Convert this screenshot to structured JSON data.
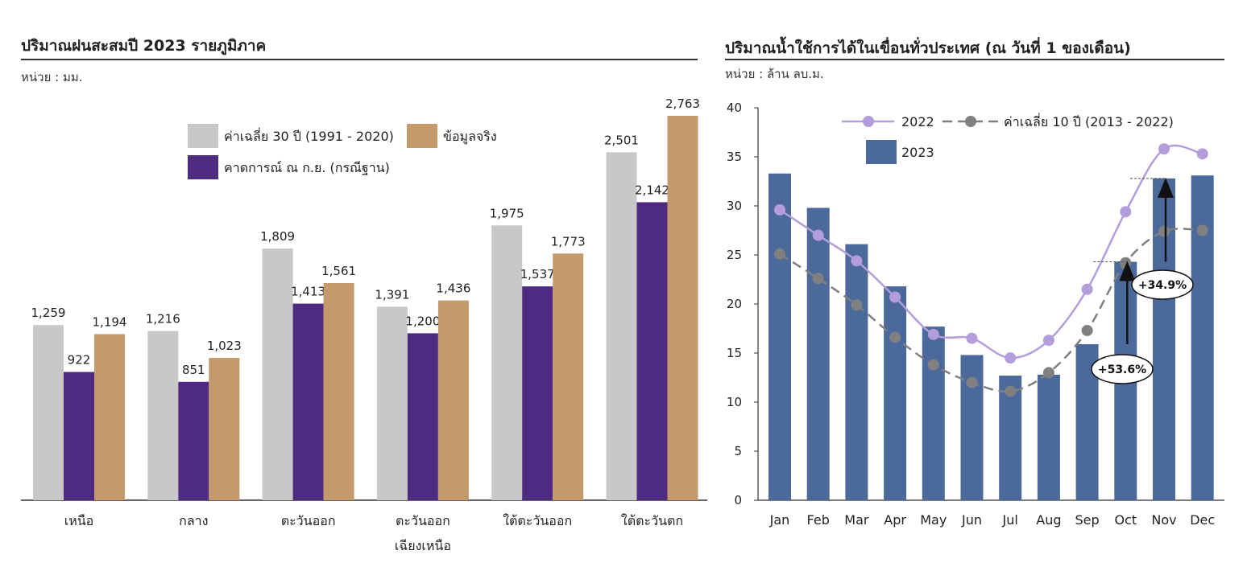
{
  "left": {
    "title": "ปริมาณฝนสะสมปี 2023 รายภูมิภาค",
    "unit": "หน่วย : มม.",
    "chart_data": {
      "type": "bar",
      "categories": [
        "เหนือ",
        "กลาง",
        "ตะวันออก",
        "ตะวันออก\nเฉียงเหนือ",
        "ใต้ตะวันออก",
        "ใต้ตะวันตก"
      ],
      "series": [
        {
          "name": "ค่าเฉลี่ย 30 ปี (1991 - 2020)",
          "values": [
            1259,
            1216,
            1809,
            1391,
            1975,
            2501
          ],
          "labels": [
            "1,259",
            "1,216",
            "1,809",
            "1,391",
            "1,975",
            "2,501"
          ]
        },
        {
          "name": "คาดการณ์ ณ ก.ย. (กรณีฐาน)",
          "values": [
            922,
            851,
            1413,
            1200,
            1537,
            2142
          ],
          "labels": [
            "922",
            "851",
            "1,413",
            "1,200",
            "1,537",
            "2,142"
          ]
        },
        {
          "name": "ข้อมูลจริง",
          "values": [
            1194,
            1023,
            1561,
            1436,
            1773,
            2763
          ],
          "labels": [
            "1,194",
            "1,023",
            "1,561",
            "1,436",
            "1,773",
            "2,763"
          ]
        }
      ],
      "ylim": [
        0,
        3000
      ],
      "colors": [
        "#c8c8c8",
        "#4e2a80",
        "#c49a6c"
      ],
      "legend_position": "top-center",
      "grid": false
    }
  },
  "right": {
    "title": "ปริมาณน้ำใช้การได้ในเขื่อนทั่วประเทศ (ณ วันที่ 1 ของเดือน)",
    "unit": "หน่วย : ล้าน ลบ.ม.",
    "chart_data": {
      "type": "bar",
      "categories": [
        "Jan",
        "Feb",
        "Mar",
        "Apr",
        "May",
        "Jun",
        "Jul",
        "Aug",
        "Sep",
        "Oct",
        "Nov",
        "Dec"
      ],
      "bars": {
        "name": "2023",
        "color": "#4b6a9b",
        "values": [
          33.3,
          29.8,
          26.1,
          21.8,
          17.7,
          14.8,
          12.7,
          12.8,
          15.9,
          24.3,
          32.8,
          33.1
        ]
      },
      "lines": [
        {
          "name": "2022",
          "color": "#b39ddb",
          "style": "solid",
          "values": [
            29.6,
            27.0,
            24.4,
            20.7,
            16.9,
            16.5,
            14.5,
            16.3,
            21.5,
            29.4,
            35.8,
            35.3
          ]
        },
        {
          "name": "ค่าเฉลี่ย 10 ปี (2013 - 2022)",
          "color": "#808080",
          "style": "dashed",
          "values": [
            25.1,
            22.6,
            19.9,
            16.6,
            13.8,
            12.0,
            11.1,
            13.0,
            17.3,
            24.2,
            27.4,
            27.5
          ]
        }
      ],
      "annotations": [
        {
          "text": "+53.6%",
          "month": "Oct",
          "from": 15.9,
          "to": 24.3
        },
        {
          "text": "+34.9%",
          "month": "Nov",
          "from": 24.3,
          "to": 32.8
        }
      ],
      "ylim": [
        0,
        40
      ],
      "yticks": [
        0,
        5,
        10,
        15,
        20,
        25,
        30,
        35,
        40
      ],
      "legend_position": "top-center",
      "grid": false
    }
  }
}
